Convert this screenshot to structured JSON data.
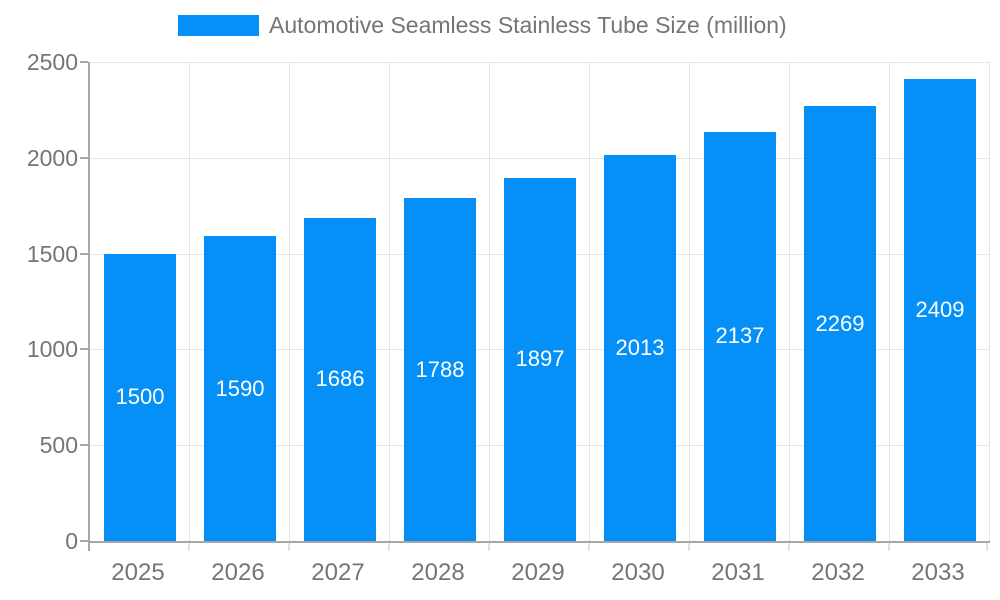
{
  "chart_data": {
    "type": "bar",
    "title": "Automotive Seamless Stainless Tube Size (million)",
    "categories": [
      "2025",
      "2026",
      "2027",
      "2028",
      "2029",
      "2030",
      "2031",
      "2032",
      "2033"
    ],
    "values": [
      1500,
      1590,
      1686,
      1788,
      1897,
      2013,
      2137,
      2269,
      2409
    ],
    "xlabel": "",
    "ylabel": "",
    "ylim": [
      0,
      2500
    ],
    "yticks": [
      0,
      500,
      1000,
      1500,
      2000,
      2500
    ],
    "grid": true,
    "legend_position": "top",
    "legend_entries": [
      "Automotive Seamless Stainless Tube Size (million)"
    ],
    "colors": {
      "bar": "#0590f8",
      "grid": "#e6e6e6",
      "axis": "#a6a6a6",
      "category_tick": "#e0e0e0",
      "tick_label": "#757575",
      "value_label": "#ffffff",
      "background": "#ffffff"
    }
  }
}
